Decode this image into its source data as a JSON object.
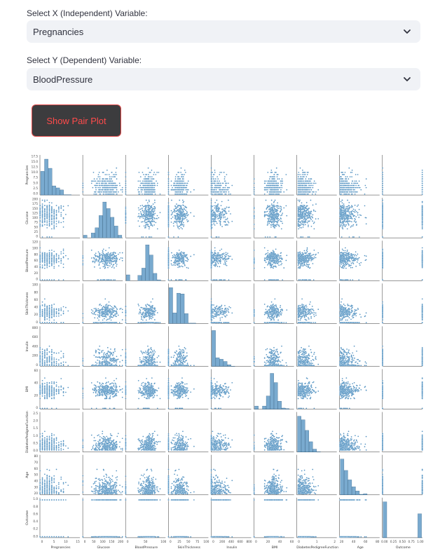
{
  "x_select": {
    "label": "Select X (Independent) Variable:",
    "value": "Pregnancies"
  },
  "y_select": {
    "label": "Select Y (Dependent) Variable:",
    "value": "BloodPressure"
  },
  "show_button": {
    "label": "Show Pair Plot"
  },
  "colors": {
    "accent": "#ff4b4b",
    "point": "#4c8ebf",
    "select_bg": "#f0f2f6",
    "button_bg": "#3c3c3e"
  },
  "icons": {
    "dropdown": "chevron-down-icon"
  },
  "chart_data": {
    "type": "scatter",
    "subtype": "pairplot",
    "variables": [
      "Pregnancies",
      "Glucose",
      "BloodPressure",
      "SkinThickness",
      "Insulin",
      "BMI",
      "DiabetesPedigreeFunction",
      "Age",
      "Outcome"
    ],
    "ranges": {
      "Pregnancies": [
        0,
        17
      ],
      "Glucose": [
        0,
        200
      ],
      "BloodPressure": [
        0,
        122
      ],
      "SkinThickness": [
        0,
        100
      ],
      "Insulin": [
        0,
        850
      ],
      "BMI": [
        0,
        68
      ],
      "DiabetesPedigreeFunction": [
        0,
        2.5
      ],
      "Age": [
        21,
        81
      ],
      "Outcome": [
        0,
        1
      ]
    },
    "row_ticks": {
      "Pregnancies": [
        "17.5",
        "15.0",
        "12.5",
        "10.0",
        "7.5",
        "5.0",
        "2.5",
        "0.0"
      ],
      "Glucose": [
        "200",
        "175",
        "150",
        "125",
        "100",
        "75",
        "50",
        "25",
        "0"
      ],
      "BloodPressure": [
        "120",
        "100",
        "80",
        "60",
        "40",
        "20",
        "0"
      ],
      "SkinThickness": [
        "100",
        "80",
        "60",
        "40",
        "20",
        "0"
      ],
      "Insulin": [
        "800",
        "600",
        "400",
        "200",
        "0"
      ],
      "BMI": [
        "60",
        "40",
        "20",
        "0"
      ],
      "DiabetesPedigreeFunction": [
        "2.5",
        "2.0",
        "1.5",
        "1.0",
        "0.5",
        "0.0"
      ],
      "Age": [
        "80",
        "70",
        "60",
        "50",
        "40",
        "30",
        "20"
      ],
      "Outcome": [
        "1.0",
        "0.8",
        "0.6",
        "0.4",
        "0.2",
        "0.0"
      ]
    },
    "col_ticks": {
      "Pregnancies": [
        "0",
        "5",
        "10",
        "15"
      ],
      "Glucose": [
        "0",
        "50",
        "100",
        "150",
        "200"
      ],
      "BloodPressure": [
        "0",
        "50",
        "100"
      ],
      "SkinThickness": [
        "0",
        "25",
        "50",
        "75",
        "100"
      ],
      "Insulin": [
        "0",
        "200",
        "400",
        "600",
        "800"
      ],
      "BMI": [
        "0",
        "20",
        "40",
        "60"
      ],
      "DiabetesPedigreeFunction": [
        "0",
        "1",
        "2"
      ],
      "Age": [
        "20",
        "40",
        "60",
        "80"
      ],
      "Outcome": [
        "0.00",
        "0.25",
        "0.50",
        "0.75",
        "1.00"
      ]
    },
    "diagonal": "histogram",
    "grid": false,
    "legend": "none"
  }
}
